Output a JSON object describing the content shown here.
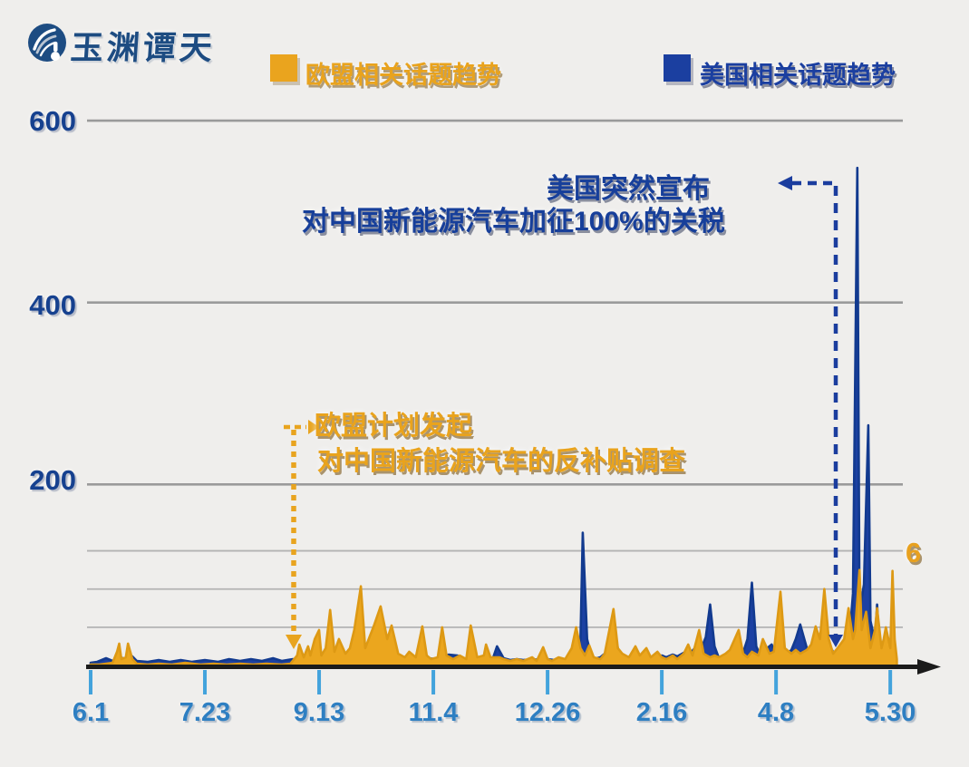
{
  "logo": {
    "text": "玉渊谭天"
  },
  "legend": [
    {
      "label": "欧盟相关话题趋势",
      "color": "#eaa41e"
    },
    {
      "label": "美国相关话题趋势",
      "color": "#1b3fa0"
    }
  ],
  "annotations": {
    "us": {
      "line1": "美国突然宣布",
      "line2": "对中国新能源汽车加征100%的关税",
      "color": "#173f9a"
    },
    "eu": {
      "line1": "欧盟计划发起",
      "line2": "对中国新能源汽车的反补贴调查",
      "color": "#e9a31d"
    }
  },
  "right_label": "6",
  "chart_data": {
    "type": "line",
    "title": "",
    "xlabel": "",
    "ylabel": "",
    "x_tick_labels": [
      "6.1",
      "7.23",
      "9.13",
      "11.4",
      "12.26",
      "2.16",
      "4.8",
      "5.30"
    ],
    "x_tick_days": [
      0,
      52,
      104,
      156,
      208,
      260,
      312,
      364
    ],
    "y_tick_labels": [
      "600",
      "400",
      "200"
    ],
    "y_ticks": [
      600,
      400,
      200
    ],
    "minor_gridline_values": [
      127,
      85,
      43
    ],
    "ylim": [
      0,
      620
    ],
    "grid": "horizontal-only",
    "legend_position": "top",
    "series": [
      {
        "name": "美国相关话题趋势",
        "color": "#1c41a3",
        "stroke": "#123a8f",
        "points": [
          [
            0,
            4
          ],
          [
            3,
            5
          ],
          [
            7,
            9
          ],
          [
            10,
            6
          ],
          [
            13,
            11
          ],
          [
            16,
            7
          ],
          [
            19,
            11
          ],
          [
            21,
            6
          ],
          [
            26,
            5
          ],
          [
            31,
            7
          ],
          [
            36,
            5
          ],
          [
            41,
            7
          ],
          [
            46,
            5
          ],
          [
            52,
            7
          ],
          [
            58,
            5
          ],
          [
            63,
            8
          ],
          [
            68,
            6
          ],
          [
            73,
            8
          ],
          [
            78,
            6
          ],
          [
            83,
            9
          ],
          [
            87,
            6
          ],
          [
            92,
            8
          ],
          [
            97,
            6
          ],
          [
            102,
            8
          ],
          [
            107,
            6
          ],
          [
            112,
            9
          ],
          [
            117,
            7
          ],
          [
            122,
            9
          ],
          [
            127,
            8
          ],
          [
            130,
            9
          ],
          [
            134,
            8
          ],
          [
            137,
            9
          ],
          [
            140,
            12
          ],
          [
            144,
            8
          ],
          [
            147,
            9
          ],
          [
            150,
            8
          ],
          [
            154,
            9
          ],
          [
            157,
            8
          ],
          [
            160,
            9
          ],
          [
            163,
            13
          ],
          [
            167,
            12
          ],
          [
            170,
            8
          ],
          [
            173,
            9
          ],
          [
            177,
            8
          ],
          [
            180,
            9
          ],
          [
            183,
            8
          ],
          [
            185,
            22
          ],
          [
            188,
            9
          ],
          [
            191,
            7
          ],
          [
            194,
            8
          ],
          [
            197,
            7
          ],
          [
            201,
            8
          ],
          [
            205,
            7
          ],
          [
            208,
            8
          ],
          [
            211,
            7
          ],
          [
            215,
            8
          ],
          [
            218,
            8
          ],
          [
            221,
            12
          ],
          [
            223,
            30
          ],
          [
            224,
            147
          ],
          [
            226,
            30
          ],
          [
            228,
            10
          ],
          [
            229,
            8
          ],
          [
            232,
            10
          ],
          [
            234,
            14
          ],
          [
            236,
            10
          ],
          [
            239,
            30
          ],
          [
            241,
            10
          ],
          [
            244,
            8
          ],
          [
            247,
            9
          ],
          [
            250,
            8
          ],
          [
            253,
            9
          ],
          [
            257,
            10
          ],
          [
            260,
            12
          ],
          [
            262,
            10
          ],
          [
            265,
            13
          ],
          [
            267,
            11
          ],
          [
            270,
            15
          ],
          [
            272,
            12
          ],
          [
            275,
            20
          ],
          [
            277,
            14
          ],
          [
            280,
            32
          ],
          [
            282,
            68
          ],
          [
            284,
            22
          ],
          [
            286,
            9
          ],
          [
            289,
            11
          ],
          [
            292,
            13
          ],
          [
            295,
            11
          ],
          [
            297,
            15
          ],
          [
            299,
            30
          ],
          [
            301,
            92
          ],
          [
            303,
            22
          ],
          [
            305,
            11
          ],
          [
            308,
            20
          ],
          [
            310,
            24
          ],
          [
            312,
            12
          ],
          [
            314,
            18
          ],
          [
            316,
            12
          ],
          [
            319,
            18
          ],
          [
            321,
            30
          ],
          [
            323,
            46
          ],
          [
            326,
            20
          ],
          [
            328,
            10
          ],
          [
            331,
            14
          ],
          [
            333,
            18
          ],
          [
            335,
            24
          ],
          [
            337,
            20
          ],
          [
            339,
            12
          ],
          [
            341,
            16
          ],
          [
            343,
            26
          ],
          [
            345,
            18
          ],
          [
            347,
            80
          ],
          [
            349,
            548
          ],
          [
            350,
            60
          ],
          [
            352,
            90
          ],
          [
            354,
            265
          ],
          [
            355,
            50
          ],
          [
            357,
            28
          ],
          [
            358,
            68
          ],
          [
            359,
            24
          ],
          [
            361,
            12
          ],
          [
            362,
            18
          ],
          [
            364,
            28
          ],
          [
            365,
            40
          ],
          [
            366,
            10
          ]
        ]
      },
      {
        "name": "欧盟相关话题趋势",
        "color": "#eba61e",
        "stroke": "#dd9914",
        "points": [
          [
            0,
            2
          ],
          [
            4,
            2
          ],
          [
            7,
            3
          ],
          [
            10,
            4
          ],
          [
            12,
            16
          ],
          [
            13,
            25
          ],
          [
            14,
            8
          ],
          [
            16,
            10
          ],
          [
            17,
            25
          ],
          [
            19,
            8
          ],
          [
            21,
            3
          ],
          [
            26,
            2
          ],
          [
            31,
            3
          ],
          [
            37,
            2
          ],
          [
            43,
            4
          ],
          [
            50,
            2
          ],
          [
            56,
            3
          ],
          [
            62,
            2
          ],
          [
            68,
            3
          ],
          [
            74,
            2
          ],
          [
            80,
            3
          ],
          [
            87,
            2
          ],
          [
            91,
            3
          ],
          [
            94,
            12
          ],
          [
            95,
            24
          ],
          [
            97,
            10
          ],
          [
            99,
            22
          ],
          [
            100,
            12
          ],
          [
            102,
            30
          ],
          [
            104,
            40
          ],
          [
            105,
            12
          ],
          [
            107,
            20
          ],
          [
            109,
            62
          ],
          [
            111,
            16
          ],
          [
            113,
            30
          ],
          [
            116,
            14
          ],
          [
            118,
            20
          ],
          [
            120,
            40
          ],
          [
            123,
            88
          ],
          [
            125,
            20
          ],
          [
            129,
            45
          ],
          [
            132,
            66
          ],
          [
            135,
            30
          ],
          [
            137,
            45
          ],
          [
            140,
            14
          ],
          [
            143,
            10
          ],
          [
            145,
            16
          ],
          [
            148,
            10
          ],
          [
            151,
            44
          ],
          [
            153,
            12
          ],
          [
            155,
            8
          ],
          [
            158,
            10
          ],
          [
            160,
            43
          ],
          [
            162,
            12
          ],
          [
            165,
            8
          ],
          [
            168,
            12
          ],
          [
            171,
            8
          ],
          [
            173,
            45
          ],
          [
            176,
            10
          ],
          [
            179,
            12
          ],
          [
            180,
            24
          ],
          [
            182,
            10
          ],
          [
            186,
            10
          ],
          [
            188,
            8
          ],
          [
            191,
            6
          ],
          [
            194,
            8
          ],
          [
            197,
            6
          ],
          [
            201,
            10
          ],
          [
            203,
            6
          ],
          [
            206,
            21
          ],
          [
            208,
            8
          ],
          [
            210,
            6
          ],
          [
            213,
            10
          ],
          [
            216,
            8
          ],
          [
            219,
            20
          ],
          [
            221,
            43
          ],
          [
            223,
            20
          ],
          [
            225,
            12
          ],
          [
            227,
            23
          ],
          [
            229,
            10
          ],
          [
            232,
            8
          ],
          [
            234,
            14
          ],
          [
            238,
            63
          ],
          [
            240,
            20
          ],
          [
            242,
            14
          ],
          [
            245,
            10
          ],
          [
            248,
            22
          ],
          [
            250,
            12
          ],
          [
            253,
            20
          ],
          [
            255,
            10
          ],
          [
            258,
            16
          ],
          [
            260,
            10
          ],
          [
            262,
            8
          ],
          [
            265,
            12
          ],
          [
            267,
            8
          ],
          [
            270,
            14
          ],
          [
            272,
            24
          ],
          [
            274,
            12
          ],
          [
            277,
            40
          ],
          [
            279,
            14
          ],
          [
            282,
            10
          ],
          [
            284,
            12
          ],
          [
            286,
            10
          ],
          [
            289,
            14
          ],
          [
            291,
            18
          ],
          [
            295,
            40
          ],
          [
            297,
            14
          ],
          [
            299,
            10
          ],
          [
            301,
            16
          ],
          [
            304,
            12
          ],
          [
            306,
            30
          ],
          [
            309,
            14
          ],
          [
            311,
            16
          ],
          [
            314,
            82
          ],
          [
            316,
            20
          ],
          [
            319,
            14
          ],
          [
            321,
            18
          ],
          [
            323,
            14
          ],
          [
            326,
            18
          ],
          [
            328,
            24
          ],
          [
            330,
            44
          ],
          [
            332,
            30
          ],
          [
            334,
            85
          ],
          [
            336,
            30
          ],
          [
            338,
            14
          ],
          [
            340,
            20
          ],
          [
            343,
            30
          ],
          [
            345,
            64
          ],
          [
            347,
            30
          ],
          [
            348,
            40
          ],
          [
            350,
            106
          ],
          [
            351,
            40
          ],
          [
            353,
            60
          ],
          [
            354,
            40
          ],
          [
            355,
            20
          ],
          [
            357,
            40
          ],
          [
            358,
            64
          ],
          [
            360,
            20
          ],
          [
            361,
            30
          ],
          [
            362,
            43
          ],
          [
            364,
            20
          ],
          [
            365,
            105
          ],
          [
            366,
            30
          ],
          [
            367,
            8
          ]
        ]
      }
    ]
  }
}
